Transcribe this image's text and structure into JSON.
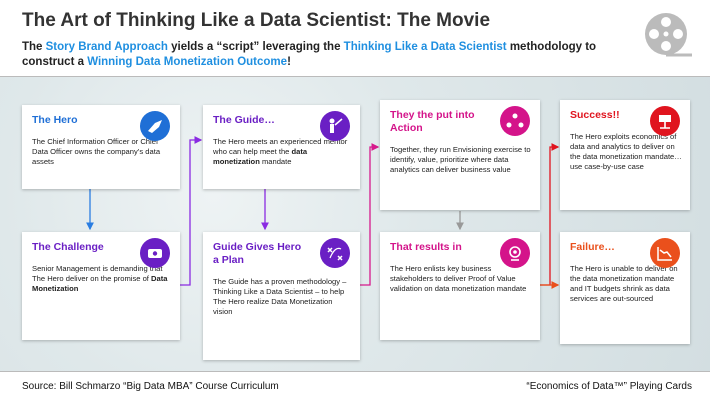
{
  "header": {
    "title": "The Art of Thinking Like a Data Scientist: The Movie",
    "subtitle": [
      {
        "text": "The ",
        "highlight": false
      },
      {
        "text": "Story Brand Approach",
        "highlight": true
      },
      {
        "text": " yields a “script” leveraging the ",
        "highlight": false
      },
      {
        "text": "Thinking Like a Data Scientist",
        "highlight": true
      },
      {
        "text": " methodology to construct a ",
        "highlight": false
      },
      {
        "text": "Winning Data Monetization Outcome",
        "highlight": true
      },
      {
        "text": "!",
        "highlight": false
      }
    ]
  },
  "cards": [
    {
      "title": "The Hero",
      "color": "#1f6fd6",
      "body": [
        {
          "text": "The Chief Information Officer or Chief Data Officer owns the company’s data assets",
          "bold": false
        }
      ]
    },
    {
      "title": "The Challenge",
      "color": "#6a1fc4",
      "body": [
        {
          "text": "Senior Management is demanding that The Hero deliver on the promise of ",
          "bold": false
        },
        {
          "text": "Data Monetization",
          "bold": true
        }
      ]
    },
    {
      "title": "The Guide…",
      "color": "#6a1fc4",
      "body": [
        {
          "text": "The Hero meets an experienced mentor who can help meet the ",
          "bold": false
        },
        {
          "text": "data monetization",
          "bold": true
        },
        {
          "text": " mandate",
          "bold": false
        }
      ]
    },
    {
      "title": "Guide Gives Hero a Plan",
      "color": "#6a1fc4",
      "body": [
        {
          "text": "The Guide has a proven methodology – Thinking Like a Data Scientist – to help The Hero realize Data Monetization vision",
          "bold": false
        }
      ]
    },
    {
      "title": "They the put into Action",
      "color": "#d4148a",
      "body": [
        {
          "text": "Together, they run Envisioning exercise to identify, value, prioritize where data analytics can deliver business value",
          "bold": false
        }
      ]
    },
    {
      "title": "That results in",
      "color": "#d4148a",
      "body": [
        {
          "text": "The Hero enlists key business stakeholders to deliver Proof of Value validation on data monetization mandate",
          "bold": false
        }
      ]
    },
    {
      "title": "Success!!",
      "color": "#e0141e",
      "body": [
        {
          "text": "The Hero exploits economics of data and analytics to deliver on the data monetization mandate…use case-by-use case",
          "bold": false
        }
      ]
    },
    {
      "title": "Failure…",
      "color": "#ea501c",
      "body": [
        {
          "text": "The Hero is unable to deliver on the data monetization mandate and IT budgets shrink as data services are out-sourced",
          "bold": false
        }
      ]
    }
  ],
  "footer": {
    "source": "Source: Bill Schmarzo “Big Data MBA” Course Curriculum",
    "brand": "“Economics of Data™” Playing Cards"
  }
}
